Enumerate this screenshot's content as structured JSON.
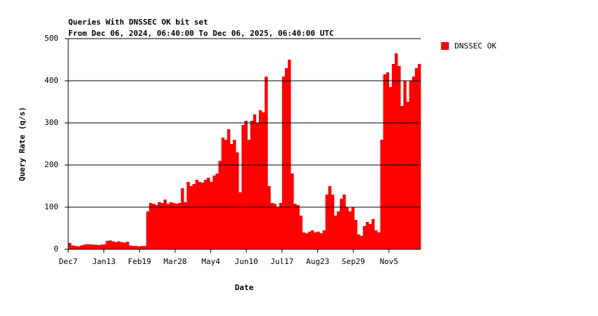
{
  "chart_data": {
    "type": "bar",
    "title": "Queries With DNSSEC OK bit set",
    "subtitle": "From Dec 06, 2024, 06:40:00 To Dec 06, 2025, 06:40:00 UTC",
    "xlabel": "Date",
    "ylabel": "Query Rate (q/s)",
    "series": [
      {
        "name": "DNSSEC OK",
        "color": "#ff0000",
        "x": [
          0,
          3,
          6,
          9,
          12,
          15,
          18,
          21,
          24,
          27,
          30,
          33,
          36,
          39,
          42,
          45,
          48,
          51,
          54,
          57,
          60,
          63,
          66,
          69,
          72,
          75,
          78,
          81,
          84,
          87,
          90,
          93,
          96,
          99,
          102,
          105,
          108,
          111,
          114,
          117,
          120,
          123,
          126,
          129,
          132,
          135,
          138,
          141,
          144,
          147,
          150,
          153,
          156,
          159,
          162,
          165,
          168,
          171,
          174,
          177,
          180,
          183,
          186,
          189,
          192,
          195,
          198,
          201,
          204,
          207,
          210,
          213,
          216,
          219,
          222,
          225,
          228,
          231,
          234,
          237,
          240,
          243,
          246,
          249,
          252,
          255,
          258,
          261,
          264,
          267,
          270,
          273,
          276,
          279,
          282,
          285,
          288,
          291,
          294,
          297,
          300,
          303,
          306,
          309,
          312,
          315,
          318,
          321,
          324,
          327,
          330,
          333,
          336,
          339,
          342,
          345,
          348,
          351,
          354,
          357,
          360,
          363
        ],
        "values": [
          15,
          9,
          8,
          7,
          9,
          11,
          12,
          12,
          11,
          11,
          10,
          11,
          12,
          20,
          21,
          19,
          17,
          19,
          17,
          16,
          18,
          9,
          8,
          8,
          7,
          8,
          8,
          90,
          110,
          108,
          105,
          112,
          110,
          118,
          108,
          112,
          110,
          108,
          110,
          145,
          112,
          160,
          150,
          155,
          165,
          160,
          158,
          165,
          170,
          160,
          175,
          180,
          210,
          265,
          260,
          285,
          250,
          260,
          230,
          135,
          295,
          305,
          260,
          305,
          320,
          300,
          330,
          325,
          410,
          150,
          110,
          108,
          100,
          110,
          410,
          430,
          450,
          180,
          108,
          105,
          80,
          40,
          38,
          42,
          45,
          40,
          42,
          38,
          45,
          130,
          150,
          130,
          80,
          90,
          120,
          130,
          100,
          90,
          100,
          70,
          35,
          32,
          55,
          65,
          60,
          72,
          45,
          40,
          260,
          415,
          420,
          385,
          440,
          465,
          435,
          340,
          400,
          350,
          400,
          410,
          430,
          440
        ]
      }
    ],
    "xlim": [
      0,
      366
    ],
    "xticks": [
      {
        "value": 0,
        "label": "Dec7"
      },
      {
        "value": 37,
        "label": "Jan13"
      },
      {
        "value": 74,
        "label": "Feb19"
      },
      {
        "value": 111,
        "label": "Mar28"
      },
      {
        "value": 148,
        "label": "May4"
      },
      {
        "value": 185,
        "label": "Jun10"
      },
      {
        "value": 222,
        "label": "Jul17"
      },
      {
        "value": 259,
        "label": "Aug23"
      },
      {
        "value": 296,
        "label": "Sep29"
      },
      {
        "value": 333,
        "label": "Nov5"
      }
    ],
    "ylim": [
      0,
      500
    ],
    "yticks": [
      0,
      100,
      200,
      300,
      400,
      500
    ],
    "grid": true,
    "legend": "right"
  }
}
